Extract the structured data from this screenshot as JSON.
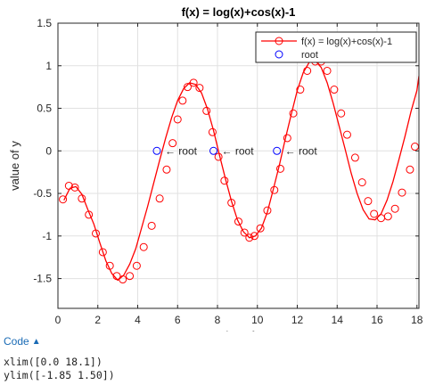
{
  "chart_data": {
    "type": "line",
    "title": "f(x) = log(x)+cos(x)-1",
    "xlabel": "value of x",
    "ylabel": "value of y",
    "xlim": [
      0.0,
      18.1
    ],
    "ylim": [
      -1.85,
      1.5
    ],
    "xticks": [
      0,
      2,
      4,
      6,
      8,
      10,
      12,
      14,
      16,
      18
    ],
    "yticks": [
      -1.5,
      -1,
      -0.5,
      0,
      0.5,
      1,
      1.5
    ],
    "xtick_labels": [
      "0",
      "2",
      "4",
      "6",
      "8",
      "10",
      "12",
      "14",
      "16",
      "18"
    ],
    "ytick_labels": [
      "-1.5",
      "-1",
      "-0.5",
      "0",
      "0.5",
      "1",
      "1.5"
    ],
    "grid": true,
    "legend_position": "top-right",
    "series": [
      {
        "name": "f(x) = log(x)+cos(x)-1",
        "color": "#ff0000",
        "marker": "circle",
        "x": [
          0.25,
          0.55,
          0.85,
          1.2,
          1.55,
          1.9,
          2.25,
          2.6,
          2.95,
          3.25,
          3.6,
          3.95,
          4.3,
          4.7,
          5.1,
          5.45,
          5.75,
          6.0,
          6.25,
          6.5,
          6.8,
          7.1,
          7.45,
          7.75,
          8.05,
          8.35,
          8.7,
          9.05,
          9.35,
          9.6,
          9.85,
          10.15,
          10.5,
          10.85,
          11.15,
          11.5,
          11.8,
          12.15,
          12.5,
          12.9,
          13.2,
          13.5,
          13.85,
          14.2,
          14.5,
          14.9,
          15.25,
          15.55,
          15.85,
          16.2,
          16.55,
          16.9,
          17.25,
          17.65,
          17.9
        ],
        "y": [
          -0.57,
          -0.41,
          -0.43,
          -0.56,
          -0.75,
          -0.97,
          -1.19,
          -1.35,
          -1.47,
          -1.51,
          -1.47,
          -1.35,
          -1.13,
          -0.88,
          -0.56,
          -0.22,
          0.09,
          0.37,
          0.59,
          0.75,
          0.8,
          0.74,
          0.47,
          0.22,
          -0.07,
          -0.35,
          -0.61,
          -0.83,
          -0.96,
          -1.02,
          -1.0,
          -0.91,
          -0.7,
          -0.46,
          -0.21,
          0.15,
          0.44,
          0.72,
          0.94,
          1.05,
          1.05,
          0.94,
          0.72,
          0.44,
          0.19,
          -0.08,
          -0.37,
          -0.59,
          -0.74,
          -0.79,
          -0.77,
          -0.68,
          -0.49,
          -0.22,
          0.05
        ],
        "curve_x": [
          0.3,
          0.6,
          0.9,
          1.2,
          1.5,
          1.8,
          2.1,
          2.4,
          2.7,
          3.0,
          3.3,
          3.6,
          3.9,
          4.2,
          4.5,
          4.8,
          5.1,
          5.4,
          5.7,
          6.0,
          6.3,
          6.6,
          6.9,
          7.2,
          7.5,
          7.8,
          8.1,
          8.4,
          8.7,
          9.0,
          9.3,
          9.6,
          9.9,
          10.2,
          10.5,
          10.8,
          11.1,
          11.4,
          11.7,
          12.0,
          12.3,
          12.6,
          12.9,
          13.2,
          13.5,
          13.8,
          14.1,
          14.4,
          14.7,
          15.0,
          15.3,
          15.6,
          15.9,
          16.2,
          16.5,
          16.8,
          17.1,
          17.4,
          17.7,
          18.0,
          18.1
        ],
        "curve_y": [
          -0.58,
          -0.44,
          -0.42,
          -0.51,
          -0.69,
          -0.86,
          -1.08,
          -1.29,
          -1.44,
          -1.52,
          -1.46,
          -1.33,
          -1.15,
          -0.9,
          -0.65,
          -0.38,
          -0.11,
          0.15,
          0.39,
          0.59,
          0.73,
          0.8,
          0.78,
          0.68,
          0.49,
          0.24,
          -0.05,
          -0.33,
          -0.59,
          -0.81,
          -0.95,
          -1.02,
          -1.0,
          -0.91,
          -0.72,
          -0.45,
          -0.17,
          0.14,
          0.43,
          0.71,
          0.92,
          1.04,
          1.06,
          0.98,
          0.8,
          0.56,
          0.29,
          0.02,
          -0.26,
          -0.5,
          -0.69,
          -0.8,
          -0.81,
          -0.74,
          -0.58,
          -0.36,
          -0.1,
          0.17,
          0.46,
          0.71,
          0.88
        ]
      },
      {
        "name": "root",
        "color": "#0000ff",
        "marker": "circle",
        "x": [
          4.96,
          7.8,
          10.98
        ],
        "y": [
          0.0,
          0.0,
          0.0
        ]
      }
    ],
    "annotations": [
      {
        "x": 4.96,
        "y": 0.0,
        "text": "← root"
      },
      {
        "x": 7.8,
        "y": 0.0,
        "text": "← root"
      },
      {
        "x": 10.98,
        "y": 0.0,
        "text": "← root"
      }
    ]
  },
  "code_section": {
    "toggle_label": "Code",
    "chevron_icon": "chevron-up-icon",
    "lines": [
      "xlim([0.0 18.1])",
      "ylim([-1.85 1.50])"
    ]
  }
}
